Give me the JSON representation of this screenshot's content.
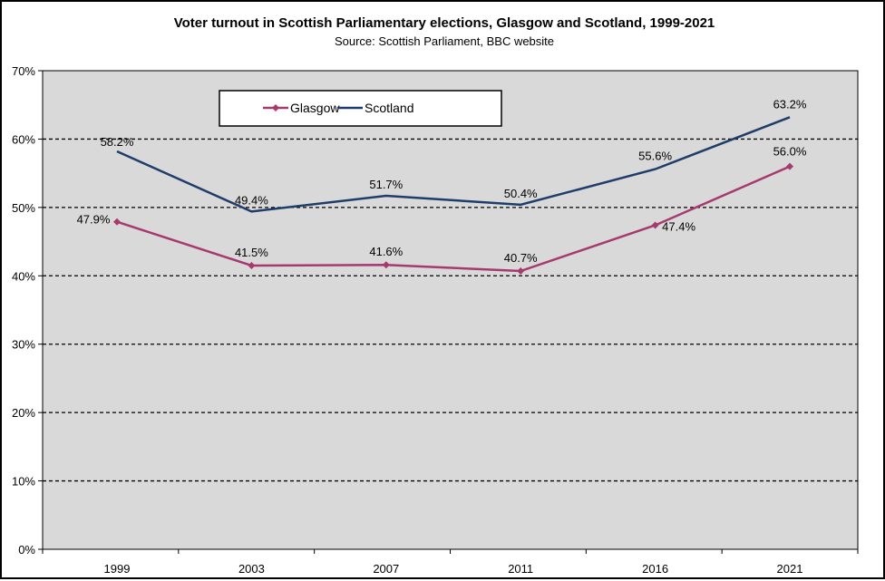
{
  "chart_data": {
    "type": "line",
    "title": "Voter turnout in Scottish Parliamentary elections, Glasgow and Scotland, 1999-2021",
    "subtitle": "Source: Scottish Parliament, BBC website",
    "categories": [
      "1999",
      "2003",
      "2007",
      "2011",
      "2016",
      "2021"
    ],
    "ylim": [
      0,
      70
    ],
    "yticks": [
      "0%",
      "10%",
      "20%",
      "30%",
      "40%",
      "50%",
      "60%",
      "70%"
    ],
    "grid": true,
    "legend": "top-left",
    "series": [
      {
        "name": "Glasgow",
        "values": [
          47.9,
          41.5,
          41.6,
          40.7,
          47.4,
          56.0
        ],
        "labels": [
          "47.9%",
          "41.5%",
          "41.6%",
          "40.7%",
          "47.4%",
          "56.0%"
        ],
        "color": "#A63A6E",
        "marker": "diamond"
      },
      {
        "name": "Scotland",
        "values": [
          58.2,
          49.4,
          51.7,
          50.4,
          55.6,
          63.2
        ],
        "labels": [
          "58.2%",
          "49.4%",
          "51.7%",
          "50.4%",
          "55.6%",
          "63.2%"
        ],
        "color": "#1F3D6B",
        "marker": "none"
      }
    ],
    "plot_background": "#D9D9D9"
  }
}
